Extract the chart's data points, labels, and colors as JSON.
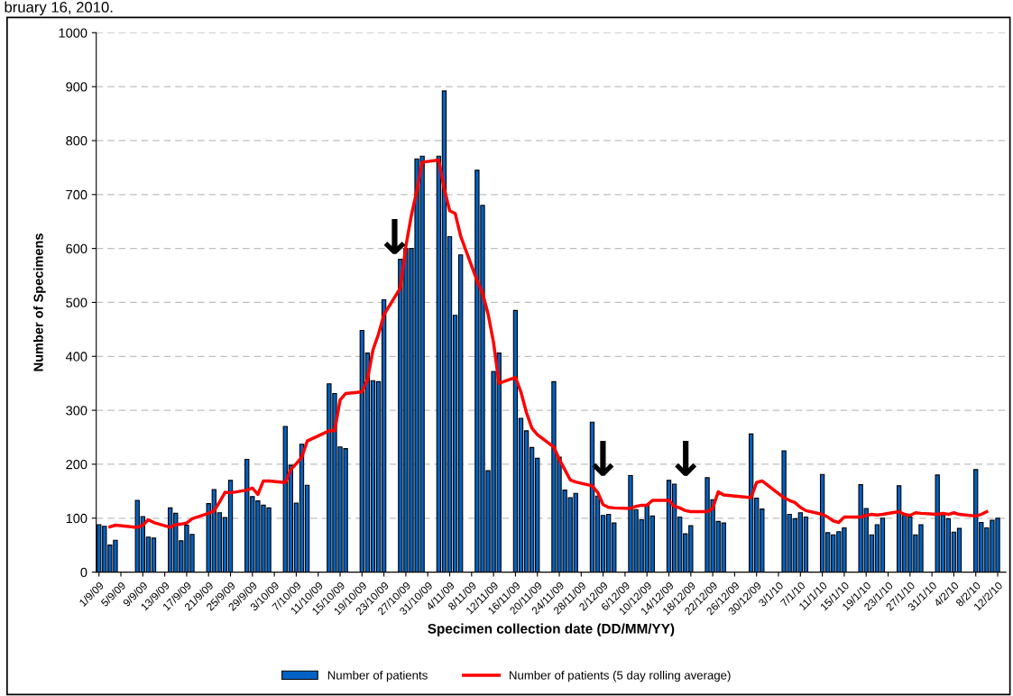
{
  "chart_data": {
    "type": "bar",
    "xlabel": "Specimen collection date (DD/MM/YY)",
    "ylabel": "Number of Specimens",
    "annotations": [
      "bruary 16, 2010.",
      "↓",
      "↓",
      "↓"
    ],
    "series": [
      {
        "name": "Number of patients",
        "color": "#0062c4",
        "x": [
          "2009-09-01",
          "2009-09-02",
          "2009-09-03",
          "2009-09-04",
          "2009-09-08",
          "2009-09-09",
          "2009-09-10",
          "2009-09-11",
          "2009-09-14",
          "2009-09-15",
          "2009-09-16",
          "2009-09-17",
          "2009-09-18",
          "2009-09-21",
          "2009-09-22",
          "2009-09-23",
          "2009-09-24",
          "2009-09-25",
          "2009-09-28",
          "2009-09-29",
          "2009-09-30",
          "2009-10-01",
          "2009-10-02",
          "2009-10-05",
          "2009-10-06",
          "2009-10-07",
          "2009-10-08",
          "2009-10-09",
          "2009-10-13",
          "2009-10-14",
          "2009-10-15",
          "2009-10-16",
          "2009-10-19",
          "2009-10-20",
          "2009-10-21",
          "2009-10-22",
          "2009-10-23",
          "2009-10-26",
          "2009-10-27",
          "2009-10-28",
          "2009-10-29",
          "2009-10-30",
          "2009-11-02",
          "2009-11-03",
          "2009-11-04",
          "2009-11-05",
          "2009-11-06",
          "2009-11-09",
          "2009-11-10",
          "2009-11-11",
          "2009-11-12",
          "2009-11-13",
          "2009-11-16",
          "2009-11-17",
          "2009-11-18",
          "2009-11-19",
          "2009-11-20",
          "2009-11-23",
          "2009-11-24",
          "2009-11-25",
          "2009-11-26",
          "2009-11-27",
          "2009-11-30",
          "2009-12-01",
          "2009-12-02",
          "2009-12-03",
          "2009-12-04",
          "2009-12-07",
          "2009-12-08",
          "2009-12-09",
          "2009-12-10",
          "2009-12-11",
          "2009-12-14",
          "2009-12-15",
          "2009-12-16",
          "2009-12-17",
          "2009-12-18",
          "2009-12-21",
          "2009-12-22",
          "2009-12-23",
          "2009-12-24",
          "2009-12-29",
          "2009-12-30",
          "2009-12-31",
          "2010-01-04",
          "2010-01-05",
          "2010-01-06",
          "2010-01-07",
          "2010-01-08",
          "2010-01-11",
          "2010-01-12",
          "2010-01-13",
          "2010-01-14",
          "2010-01-15",
          "2010-01-18",
          "2010-01-19",
          "2010-01-20",
          "2010-01-21",
          "2010-01-22",
          "2010-01-25",
          "2010-01-26",
          "2010-01-27",
          "2010-01-28",
          "2010-01-29",
          "2010-02-01",
          "2010-02-02",
          "2010-02-03",
          "2010-02-04",
          "2010-02-05",
          "2010-02-08",
          "2010-02-09",
          "2010-02-10",
          "2010-02-11",
          "2010-02-12"
        ],
        "values": [
          88,
          85,
          50,
          59,
          133,
          103,
          65,
          63,
          119,
          109,
          58,
          87,
          70,
          127,
          153,
          110,
          101,
          170,
          209,
          140,
          132,
          124,
          119,
          270,
          198,
          128,
          237,
          161,
          349,
          331,
          232,
          229,
          448,
          406,
          355,
          353,
          505,
          580,
          600,
          600,
          766,
          771,
          771,
          892,
          622,
          476,
          588,
          745,
          680,
          188,
          372,
          406,
          485,
          285,
          262,
          231,
          211,
          353,
          213,
          152,
          138,
          146,
          278,
          141,
          105,
          107,
          91,
          179,
          116,
          97,
          125,
          104,
          170,
          163,
          102,
          71,
          86,
          175,
          134,
          94,
          91,
          256,
          137,
          117,
          225,
          107,
          99,
          110,
          102,
          181,
          73,
          69,
          75,
          82,
          162,
          118,
          69,
          88,
          100,
          160,
          105,
          102,
          69,
          88,
          180,
          105,
          99,
          74,
          81,
          190,
          92,
          82,
          96,
          100
        ]
      },
      {
        "name": "Number of patients (5 day rolling average)",
        "type": "line",
        "color": "#ff0000",
        "line_style": "solid",
        "marker": "none",
        "x": [
          "2009-09-03",
          "2009-09-04",
          "2009-09-08",
          "2009-09-09",
          "2009-09-10",
          "2009-09-11",
          "2009-09-14",
          "2009-09-15",
          "2009-09-16",
          "2009-09-17",
          "2009-09-18",
          "2009-09-21",
          "2009-09-22",
          "2009-09-23",
          "2009-09-24",
          "2009-09-25",
          "2009-09-28",
          "2009-09-29",
          "2009-09-30",
          "2009-10-01",
          "2009-10-02",
          "2009-10-05",
          "2009-10-06",
          "2009-10-07",
          "2009-10-08",
          "2009-10-09",
          "2009-10-13",
          "2009-10-14",
          "2009-10-15",
          "2009-10-16",
          "2009-10-19",
          "2009-10-20",
          "2009-10-21",
          "2009-10-22",
          "2009-10-23",
          "2009-10-26",
          "2009-10-27",
          "2009-10-28",
          "2009-10-29",
          "2009-10-30",
          "2009-11-02",
          "2009-11-03",
          "2009-11-04",
          "2009-11-05",
          "2009-11-06",
          "2009-11-09",
          "2009-11-10",
          "2009-11-11",
          "2009-11-12",
          "2009-11-13",
          "2009-11-16",
          "2009-11-17",
          "2009-11-18",
          "2009-11-19",
          "2009-11-20",
          "2009-11-23",
          "2009-11-24",
          "2009-11-25",
          "2009-11-26",
          "2009-11-27",
          "2009-11-30",
          "2009-12-01",
          "2009-12-02",
          "2009-12-03",
          "2009-12-04",
          "2009-12-07",
          "2009-12-08",
          "2009-12-09",
          "2009-12-10",
          "2009-12-11",
          "2009-12-14",
          "2009-12-15",
          "2009-12-16",
          "2009-12-17",
          "2009-12-18",
          "2009-12-21",
          "2009-12-22",
          "2009-12-23",
          "2009-12-24",
          "2009-12-29",
          "2009-12-30",
          "2009-12-31",
          "2010-01-04",
          "2010-01-05",
          "2010-01-06",
          "2010-01-07",
          "2010-01-08",
          "2010-01-11",
          "2010-01-12",
          "2010-01-13",
          "2010-01-14",
          "2010-01-15",
          "2010-01-18",
          "2010-01-19",
          "2010-01-20",
          "2010-01-21",
          "2010-01-22",
          "2010-01-25",
          "2010-01-26",
          "2010-01-27",
          "2010-01-28",
          "2010-01-29",
          "2010-02-01",
          "2010-02-02",
          "2010-02-03",
          "2010-02-04",
          "2010-02-05",
          "2010-02-08",
          "2010-02-09",
          "2010-02-10"
        ],
        "values": [
          84,
          87,
          83,
          87,
          97,
          92,
          83,
          88,
          89,
          91,
          99,
          109,
          113,
          130,
          148,
          147,
          152,
          156,
          144,
          169,
          169,
          166,
          190,
          201,
          213,
          243,
          262,
          262,
          319,
          331,
          334,
          357,
          412,
          441,
          477,
          527,
          604,
          661,
          707,
          760,
          764,
          711,
          670,
          665,
          623,
          540,
          517,
          479,
          426,
          350,
          361,
          334,
          296,
          267,
          255,
          232,
          209,
          190,
          171,
          167,
          160,
          148,
          125,
          120,
          119,
          118,
          122,
          124,
          124,
          133,
          133,
          122,
          119,
          114,
          112,
          112,
          118,
          149,
          143,
          138,
          166,
          169,
          138,
          133,
          129,
          120,
          114,
          107,
          102,
          95,
          92,
          102,
          102,
          105,
          107,
          106,
          107,
          112,
          107,
          105,
          110,
          109,
          107,
          109,
          107,
          110,
          107,
          104,
          107,
          112
        ]
      }
    ],
    "xlim": [
      "2009-08-31T12:00",
      "2010-02-13T12:00"
    ],
    "xticks": [
      {
        "value": "2009-09-01",
        "label": "1/9/09"
      },
      {
        "value": "2009-09-05",
        "label": "5/9/09"
      },
      {
        "value": "2009-09-09",
        "label": "9/9/09"
      },
      {
        "value": "2009-09-13",
        "label": "13/9/09"
      },
      {
        "value": "2009-09-17",
        "label": "17/9/09"
      },
      {
        "value": "2009-09-21",
        "label": "21/9/09"
      },
      {
        "value": "2009-09-25",
        "label": "25/9/09"
      },
      {
        "value": "2009-09-29",
        "label": "29/9/09"
      },
      {
        "value": "2009-10-03",
        "label": "3/10/09"
      },
      {
        "value": "2009-10-07",
        "label": "7/10/09"
      },
      {
        "value": "2009-10-11",
        "label": "11/10/09"
      },
      {
        "value": "2009-10-15",
        "label": "15/10/09"
      },
      {
        "value": "2009-10-19",
        "label": "19/10/09"
      },
      {
        "value": "2009-10-23",
        "label": "23/10/09"
      },
      {
        "value": "2009-10-27",
        "label": "27/10/09"
      },
      {
        "value": "2009-10-31",
        "label": "31/10/09"
      },
      {
        "value": "2009-11-04",
        "label": "4/11/09"
      },
      {
        "value": "2009-11-08",
        "label": "8/11/09"
      },
      {
        "value": "2009-11-12",
        "label": "12/11/09"
      },
      {
        "value": "2009-11-16",
        "label": "16/11/09"
      },
      {
        "value": "2009-11-20",
        "label": "20/11/09"
      },
      {
        "value": "2009-11-24",
        "label": "24/11/09"
      },
      {
        "value": "2009-11-28",
        "label": "28/11/09"
      },
      {
        "value": "2009-12-02",
        "label": "2/12/09"
      },
      {
        "value": "2009-12-06",
        "label": "6/12/09"
      },
      {
        "value": "2009-12-10",
        "label": "10/12/09"
      },
      {
        "value": "2009-12-14",
        "label": "14/12/09"
      },
      {
        "value": "2009-12-18",
        "label": "18/12/09"
      },
      {
        "value": "2009-12-22",
        "label": "22/12/09"
      },
      {
        "value": "2009-12-26",
        "label": "26/12/09"
      },
      {
        "value": "2009-12-30",
        "label": "30/12/09"
      },
      {
        "value": "2010-01-03",
        "label": "3/1/10"
      },
      {
        "value": "2010-01-07",
        "label": "7/1/10"
      },
      {
        "value": "2010-01-11",
        "label": "11/1/10"
      },
      {
        "value": "2010-01-15",
        "label": "15/1/10"
      },
      {
        "value": "2010-01-19",
        "label": "19/1/10"
      },
      {
        "value": "2010-01-23",
        "label": "23/1/10"
      },
      {
        "value": "2010-01-27",
        "label": "27/1/10"
      },
      {
        "value": "2010-01-31",
        "label": "31/1/10"
      },
      {
        "value": "2010-02-04",
        "label": "4/2/10"
      },
      {
        "value": "2010-02-08",
        "label": "8/2/10"
      },
      {
        "value": "2010-02-12",
        "label": "12/2/10"
      }
    ],
    "ylim": [
      0,
      1000
    ],
    "yticks": [
      0,
      100,
      200,
      300,
      400,
      500,
      600,
      700,
      800,
      900,
      1000
    ],
    "grid": "y",
    "legend": "bottom"
  }
}
